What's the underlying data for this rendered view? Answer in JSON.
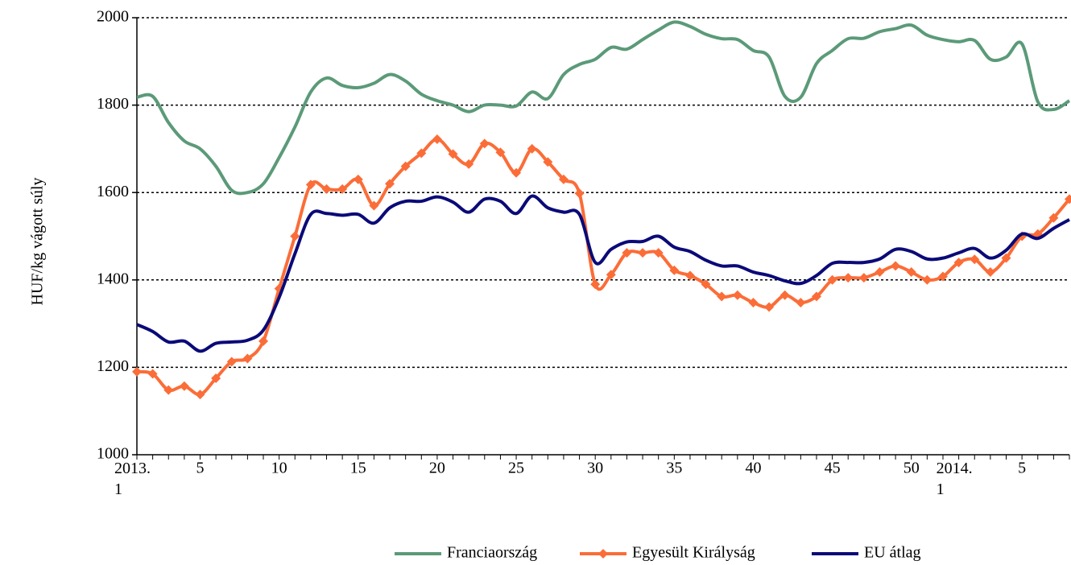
{
  "chart_data": {
    "type": "line",
    "y_label": "HUF/kg vágott súly",
    "categories": [
      "2013.\n1",
      null,
      null,
      null,
      "5",
      null,
      null,
      null,
      null,
      "10",
      null,
      null,
      null,
      null,
      "15",
      null,
      null,
      null,
      null,
      "20",
      null,
      null,
      null,
      null,
      "25",
      null,
      null,
      null,
      null,
      "30",
      null,
      null,
      null,
      null,
      "35",
      null,
      null,
      null,
      null,
      "40",
      null,
      null,
      null,
      null,
      "45",
      null,
      null,
      null,
      null,
      "50",
      null,
      null,
      "2014.\n1",
      null,
      null,
      null,
      "5",
      null,
      null,
      null
    ],
    "ylim": [
      1000,
      2000
    ],
    "yticks": [
      1000,
      1200,
      1400,
      1600,
      1800,
      2000
    ],
    "grid": true,
    "legend": "bottom",
    "series": [
      {
        "name": "Franciaország",
        "color": "#5b9a78",
        "marker": null,
        "values": [
          1818,
          1820,
          1760,
          1718,
          1700,
          1660,
          1605,
          1600,
          1620,
          1680,
          1750,
          1830,
          1862,
          1845,
          1840,
          1850,
          1870,
          1855,
          1825,
          1810,
          1800,
          1785,
          1800,
          1800,
          1798,
          1830,
          1815,
          1870,
          1893,
          1905,
          1932,
          1928,
          1950,
          1972,
          1990,
          1980,
          1962,
          1952,
          1950,
          1925,
          1910,
          1820,
          1818,
          1895,
          1925,
          1952,
          1953,
          1968,
          1975,
          1983,
          1960,
          1950,
          1945,
          1948,
          1905,
          1910,
          1940,
          1808,
          1790,
          1810
        ]
      },
      {
        "name": "Egyesült Királyság",
        "color": "#fb6d38",
        "marker": "diamond",
        "values": [
          1190,
          1185,
          1148,
          1157,
          1138,
          1175,
          1213,
          1220,
          1260,
          1380,
          1500,
          1618,
          1608,
          1608,
          1630,
          1570,
          1620,
          1660,
          1690,
          1722,
          1688,
          1665,
          1712,
          1692,
          1645,
          1700,
          1670,
          1630,
          1598,
          1390,
          1412,
          1462,
          1462,
          1462,
          1422,
          1410,
          1390,
          1362,
          1365,
          1348,
          1338,
          1365,
          1348,
          1362,
          1400,
          1405,
          1405,
          1418,
          1432,
          1418,
          1400,
          1408,
          1440,
          1447,
          1418,
          1450,
          1500,
          1505,
          1542,
          1585
        ]
      },
      {
        "name": "EU átlag",
        "color": "#0a0a78",
        "marker": null,
        "values": [
          1298,
          1282,
          1258,
          1260,
          1237,
          1255,
          1258,
          1262,
          1285,
          1360,
          1460,
          1550,
          1552,
          1548,
          1550,
          1530,
          1565,
          1580,
          1580,
          1590,
          1578,
          1555,
          1585,
          1580,
          1552,
          1592,
          1565,
          1555,
          1550,
          1440,
          1470,
          1487,
          1488,
          1500,
          1475,
          1465,
          1445,
          1432,
          1432,
          1418,
          1410,
          1398,
          1392,
          1410,
          1438,
          1440,
          1440,
          1448,
          1470,
          1465,
          1448,
          1450,
          1462,
          1472,
          1450,
          1468,
          1505,
          1495,
          1518,
          1538
        ]
      }
    ]
  }
}
